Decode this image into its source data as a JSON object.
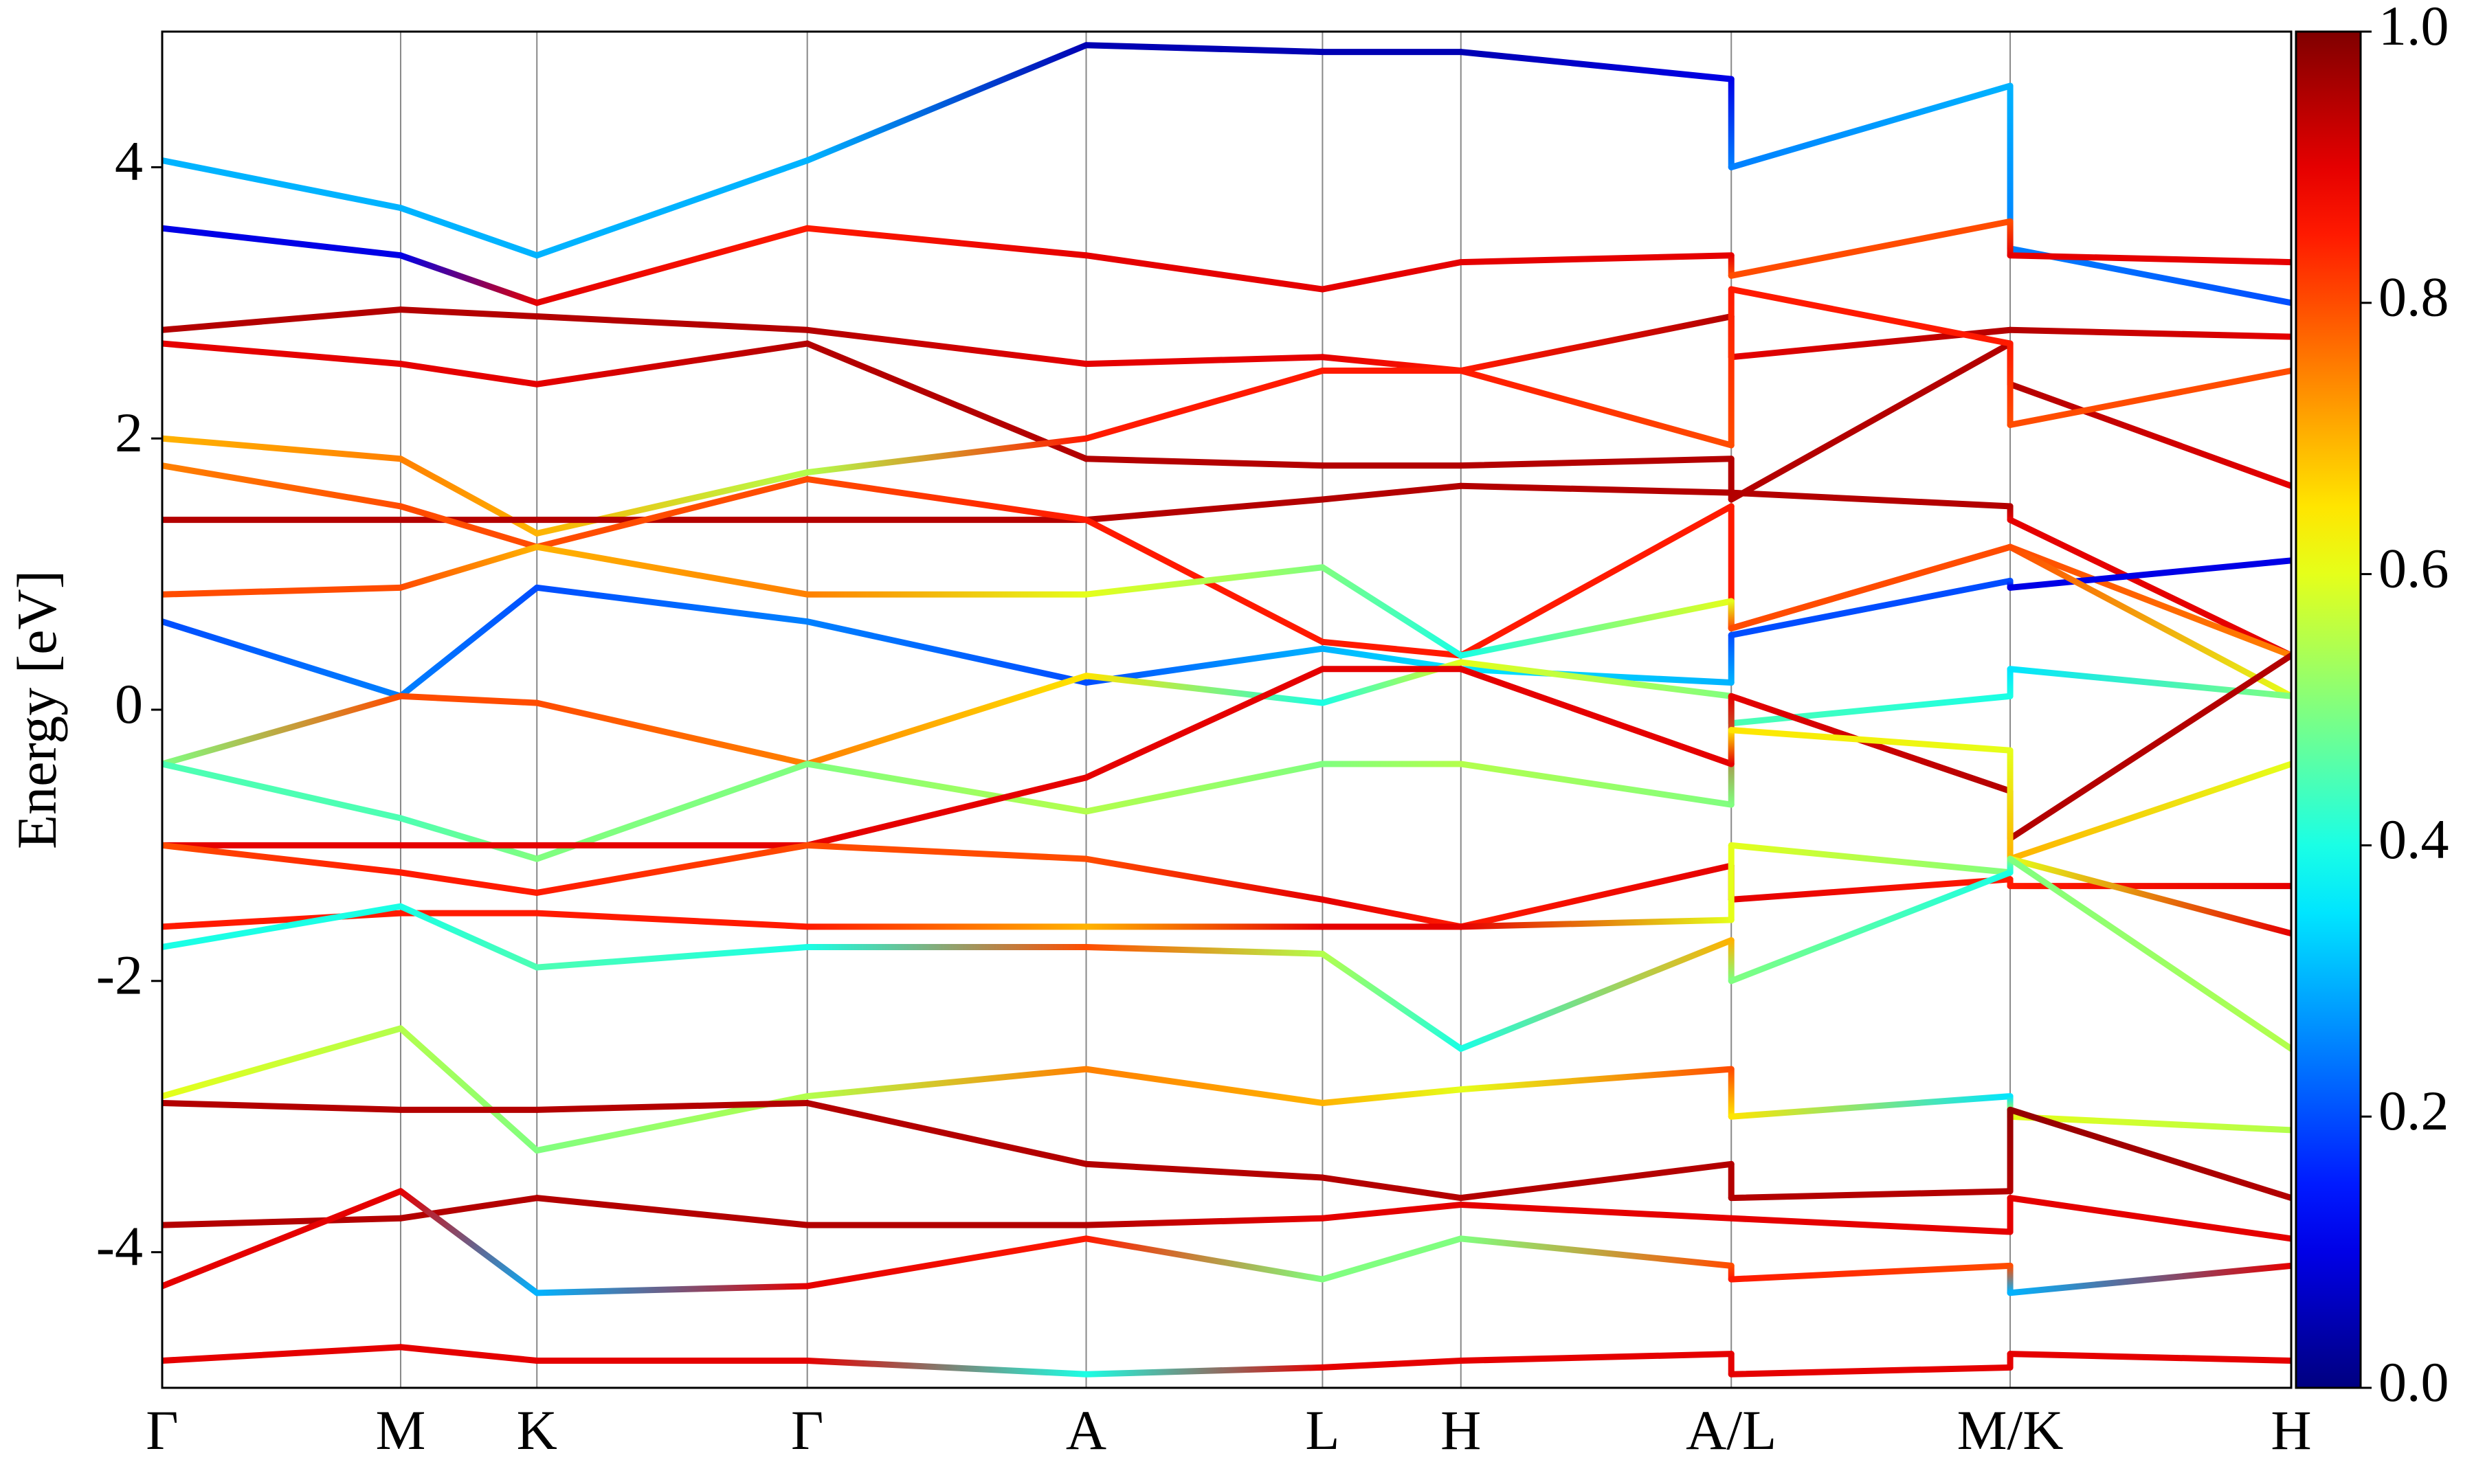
{
  "chart_data": {
    "type": "band-structure",
    "ylabel": "Energy [eV]",
    "x": [
      0,
      0.112,
      0.176,
      0.303,
      0.434,
      0.545,
      0.61,
      0.737,
      0.737,
      0.868,
      0.868,
      1.0
    ],
    "xlim": [
      0,
      1.0
    ],
    "xticks": [
      {
        "value": 0,
        "label": "Γ"
      },
      {
        "value": 0.112,
        "label": "M"
      },
      {
        "value": 0.176,
        "label": "K"
      },
      {
        "value": 0.303,
        "label": "Γ"
      },
      {
        "value": 0.434,
        "label": "A"
      },
      {
        "value": 0.545,
        "label": "L"
      },
      {
        "value": 0.61,
        "label": "H"
      },
      {
        "value": 0.737,
        "label": "A/L"
      },
      {
        "value": 0.868,
        "label": "M/K"
      },
      {
        "value": 1.0,
        "label": "H"
      }
    ],
    "ylim": [
      -5,
      5
    ],
    "yticks": [
      -4,
      -2,
      0,
      2,
      4
    ],
    "colormap": "jet",
    "clim": [
      0,
      1.0
    ],
    "cticks": [
      {
        "value": 0,
        "label": "0.0"
      },
      {
        "value": 0.2,
        "label": "0.2"
      },
      {
        "value": 0.4,
        "label": "0.4"
      },
      {
        "value": 0.6,
        "label": "0.6"
      },
      {
        "value": 0.8,
        "label": "0.8"
      },
      {
        "value": 1.0,
        "label": "1.0"
      }
    ],
    "series": [
      {
        "values": [
          4.05,
          3.7,
          3.35,
          4.05,
          4.9,
          4.85,
          4.85,
          4.65,
          4.0,
          4.6,
          3.4,
          3.0
        ],
        "weights": [
          0.3,
          0.3,
          0.3,
          0.3,
          0.05,
          0.05,
          0.05,
          0.1,
          0.25,
          0.3,
          0.25,
          0.2
        ]
      },
      {
        "values": [
          3.55,
          3.35,
          3.0,
          3.55,
          3.35,
          3.1,
          3.3,
          3.35,
          3.2,
          3.6,
          3.35,
          3.3
        ],
        "weights": [
          0.1,
          0.1,
          0.9,
          0.85,
          0.9,
          0.9,
          0.9,
          0.9,
          0.8,
          0.8,
          0.9,
          0.9
        ]
      },
      {
        "values": [
          2.8,
          2.95,
          2.9,
          2.8,
          2.55,
          2.6,
          2.5,
          2.9,
          2.6,
          2.8,
          2.8,
          2.75
        ],
        "weights": [
          0.95,
          0.95,
          0.95,
          0.95,
          0.9,
          0.9,
          0.85,
          0.95,
          0.9,
          0.95,
          0.95,
          0.9
        ]
      },
      {
        "values": [
          2.7,
          2.55,
          2.4,
          2.7,
          1.85,
          1.8,
          1.8,
          1.85,
          1.55,
          2.7,
          2.4,
          1.65
        ],
        "weights": [
          0.9,
          0.9,
          0.9,
          0.95,
          0.95,
          0.95,
          0.95,
          0.95,
          0.95,
          0.95,
          0.95,
          0.9
        ]
      },
      {
        "values": [
          2.0,
          1.85,
          1.3,
          1.75,
          2.0,
          2.5,
          2.5,
          1.95,
          3.1,
          2.7,
          2.1,
          2.5
        ],
        "weights": [
          0.7,
          0.75,
          0.7,
          0.55,
          0.85,
          0.85,
          0.85,
          0.8,
          0.85,
          0.85,
          0.8,
          0.8
        ]
      },
      {
        "values": [
          1.4,
          1.4,
          1.4,
          1.4,
          1.4,
          1.55,
          1.65,
          1.6,
          1.6,
          1.5,
          1.4,
          0.4
        ],
        "weights": [
          0.95,
          0.95,
          0.95,
          0.95,
          0.95,
          0.95,
          0.95,
          0.95,
          0.95,
          0.95,
          0.9,
          0.9
        ]
      },
      {
        "values": [
          1.8,
          1.5,
          1.2,
          1.7,
          1.4,
          0.5,
          0.4,
          1.5,
          0.6,
          1.2,
          1.2,
          0.4
        ],
        "weights": [
          0.75,
          0.8,
          0.8,
          0.8,
          0.85,
          0.85,
          0.85,
          0.85,
          0.85,
          0.8,
          0.8,
          0.75
        ]
      },
      {
        "values": [
          0.65,
          0.1,
          0.9,
          0.65,
          0.2,
          0.45,
          0.3,
          0.2,
          0.55,
          0.95,
          0.9,
          1.1
        ],
        "weights": [
          0.2,
          0.25,
          0.2,
          0.25,
          0.2,
          0.3,
          0.35,
          0.3,
          0.2,
          0.2,
          0.1,
          0.1
        ]
      },
      {
        "values": [
          0.85,
          0.9,
          1.2,
          0.85,
          0.85,
          1.05,
          0.4,
          0.8,
          0.6,
          1.2,
          1.2,
          0.1
        ],
        "weights": [
          0.8,
          0.8,
          0.7,
          0.75,
          0.6,
          0.5,
          0.4,
          0.6,
          0.8,
          0.8,
          0.8,
          0.6
        ]
      },
      {
        "values": [
          -0.4,
          0.1,
          0.05,
          -0.4,
          0.25,
          0.05,
          0.35,
          0.1,
          -0.1,
          0.1,
          0.3,
          0.1
        ],
        "weights": [
          0.5,
          0.8,
          0.8,
          0.75,
          0.65,
          0.4,
          0.6,
          0.5,
          0.45,
          0.4,
          0.35,
          0.5
        ]
      },
      {
        "values": [
          -0.4,
          -0.8,
          -1.1,
          -0.4,
          -0.75,
          -0.4,
          -0.4,
          -0.7,
          0.1,
          -0.6,
          -0.95,
          0.4
        ],
        "weights": [
          0.45,
          0.45,
          0.5,
          0.5,
          0.55,
          0.5,
          0.55,
          0.5,
          0.9,
          0.95,
          0.95,
          0.95
        ]
      },
      {
        "values": [
          -1.0,
          -1.0,
          -1.0,
          -1.0,
          -0.5,
          0.3,
          0.3,
          -0.4,
          -0.15,
          -0.3,
          -1.1,
          -0.4
        ],
        "weights": [
          0.9,
          0.9,
          0.9,
          0.9,
          0.9,
          0.9,
          0.9,
          0.9,
          0.65,
          0.6,
          0.7,
          0.6
        ]
      },
      {
        "values": [
          -1.0,
          -1.2,
          -1.35,
          -1.0,
          -1.1,
          -1.4,
          -1.6,
          -1.15,
          -1.4,
          -1.25,
          -1.3,
          -1.3
        ],
        "weights": [
          0.8,
          0.85,
          0.85,
          0.8,
          0.8,
          0.9,
          0.85,
          0.9,
          0.9,
          0.85,
          0.85,
          0.9
        ]
      },
      {
        "values": [
          -1.6,
          -1.5,
          -1.5,
          -1.6,
          -1.6,
          -1.6,
          -1.6,
          -1.55,
          -1.0,
          -1.2,
          -1.1,
          -1.65
        ],
        "weights": [
          0.85,
          0.85,
          0.85,
          0.85,
          0.7,
          0.9,
          0.9,
          0.6,
          0.6,
          0.5,
          0.6,
          0.9
        ]
      },
      {
        "values": [
          -1.75,
          -1.45,
          -1.9,
          -1.75,
          -1.75,
          -1.8,
          -2.5,
          -1.7,
          -2.0,
          -1.2,
          -1.1,
          -2.5
        ],
        "weights": [
          0.4,
          0.4,
          0.45,
          0.4,
          0.8,
          0.55,
          0.4,
          0.7,
          0.5,
          0.4,
          0.5,
          0.55
        ]
      },
      {
        "values": [
          -2.85,
          -2.35,
          -3.25,
          -2.85,
          -2.65,
          -2.9,
          -2.8,
          -2.65,
          -3.0,
          -2.85,
          -3.0,
          -3.1
        ],
        "weights": [
          0.6,
          0.55,
          0.5,
          0.55,
          0.75,
          0.7,
          0.6,
          0.8,
          0.65,
          0.35,
          0.6,
          0.55
        ]
      },
      {
        "values": [
          -2.9,
          -2.95,
          -2.95,
          -2.9,
          -3.35,
          -3.45,
          -3.6,
          -3.35,
          -3.6,
          -3.55,
          -2.95,
          -3.6
        ],
        "weights": [
          0.95,
          0.95,
          0.95,
          0.95,
          0.95,
          0.95,
          0.95,
          0.95,
          0.95,
          0.95,
          0.98,
          0.95
        ]
      },
      {
        "values": [
          -3.8,
          -3.75,
          -3.6,
          -3.8,
          -3.8,
          -3.75,
          -3.65,
          -3.75,
          -3.75,
          -3.85,
          -3.6,
          -3.9
        ],
        "weights": [
          0.95,
          0.95,
          0.95,
          0.95,
          0.95,
          0.9,
          0.9,
          0.9,
          0.9,
          0.9,
          0.9,
          0.9
        ]
      },
      {
        "values": [
          -4.25,
          -3.55,
          -4.3,
          -4.25,
          -3.9,
          -4.2,
          -3.9,
          -4.1,
          -4.2,
          -4.1,
          -4.3,
          -4.1
        ],
        "weights": [
          0.9,
          0.9,
          0.3,
          0.9,
          0.85,
          0.5,
          0.5,
          0.8,
          0.85,
          0.8,
          0.3,
          0.9
        ]
      },
      {
        "values": [
          -4.8,
          -4.7,
          -4.8,
          -4.8,
          -4.9,
          -4.85,
          -4.8,
          -4.75,
          -4.9,
          -4.85,
          -4.75,
          -4.8
        ],
        "weights": [
          0.9,
          0.9,
          0.9,
          0.9,
          0.4,
          0.9,
          0.9,
          0.9,
          0.9,
          0.9,
          0.9,
          0.9
        ]
      }
    ]
  }
}
